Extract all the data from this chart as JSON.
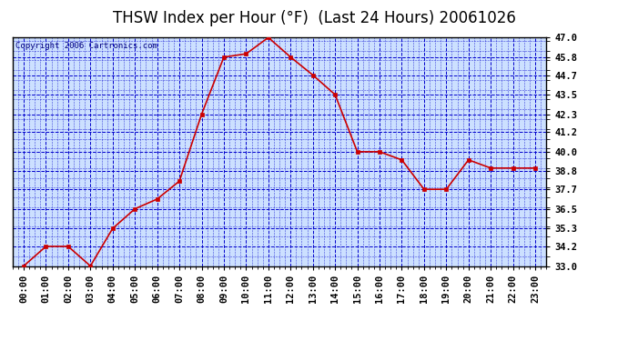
{
  "title": "THSW Index per Hour (°F)  (Last 24 Hours) 20061026",
  "copyright": "Copyright 2006 Cartronics.com",
  "x_labels": [
    "00:00",
    "01:00",
    "02:00",
    "03:00",
    "04:00",
    "05:00",
    "06:00",
    "07:00",
    "08:00",
    "09:00",
    "10:00",
    "11:00",
    "12:00",
    "13:00",
    "14:00",
    "15:00",
    "16:00",
    "17:00",
    "18:00",
    "19:00",
    "20:00",
    "21:00",
    "22:00",
    "23:00"
  ],
  "y_values": [
    33.0,
    34.2,
    34.2,
    33.0,
    35.3,
    36.5,
    37.1,
    38.2,
    42.3,
    45.8,
    46.0,
    47.0,
    45.8,
    44.7,
    43.5,
    40.0,
    40.0,
    39.5,
    37.7,
    37.7,
    39.5,
    39.0,
    39.0,
    39.0
  ],
  "ylim_min": 33.0,
  "ylim_max": 47.0,
  "y_ticks": [
    33.0,
    34.2,
    35.3,
    36.5,
    37.7,
    38.8,
    40.0,
    41.2,
    42.3,
    43.5,
    44.7,
    45.8,
    47.0
  ],
  "line_color": "#cc0000",
  "marker_color": "#cc0000",
  "plot_bg": "#cce0ff",
  "grid_color": "#0000cc",
  "title_color": "#000000",
  "axis_label_color": "#000000",
  "border_color": "#000000",
  "copyright_color": "#000080",
  "outer_bg": "#ffffff",
  "title_fontsize": 12,
  "tick_fontsize": 7.5,
  "copyright_fontsize": 6.5
}
